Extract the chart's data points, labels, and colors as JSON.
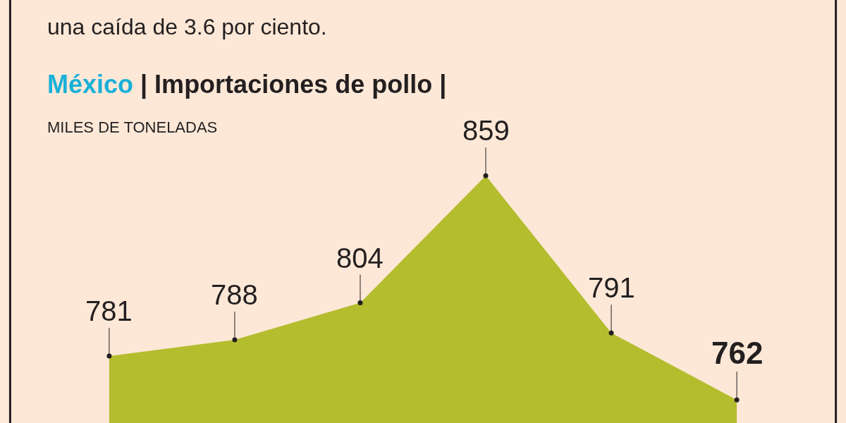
{
  "chart_data": {
    "type": "area",
    "title": "México | Importaciones de pollo |",
    "subtitle": "MILES DE TONELADAS",
    "annotations": [
      "una caída de 3.6 por ciento."
    ],
    "categories": [
      null,
      null,
      null,
      null,
      null,
      null
    ],
    "values": [
      781,
      788,
      804,
      859,
      791,
      762
    ],
    "color": "#b4bd2e",
    "ylim": [
      752,
      935
    ],
    "data_labels": true,
    "marker": "circle",
    "tick_labels": false,
    "grid": false,
    "legend": false
  }
}
